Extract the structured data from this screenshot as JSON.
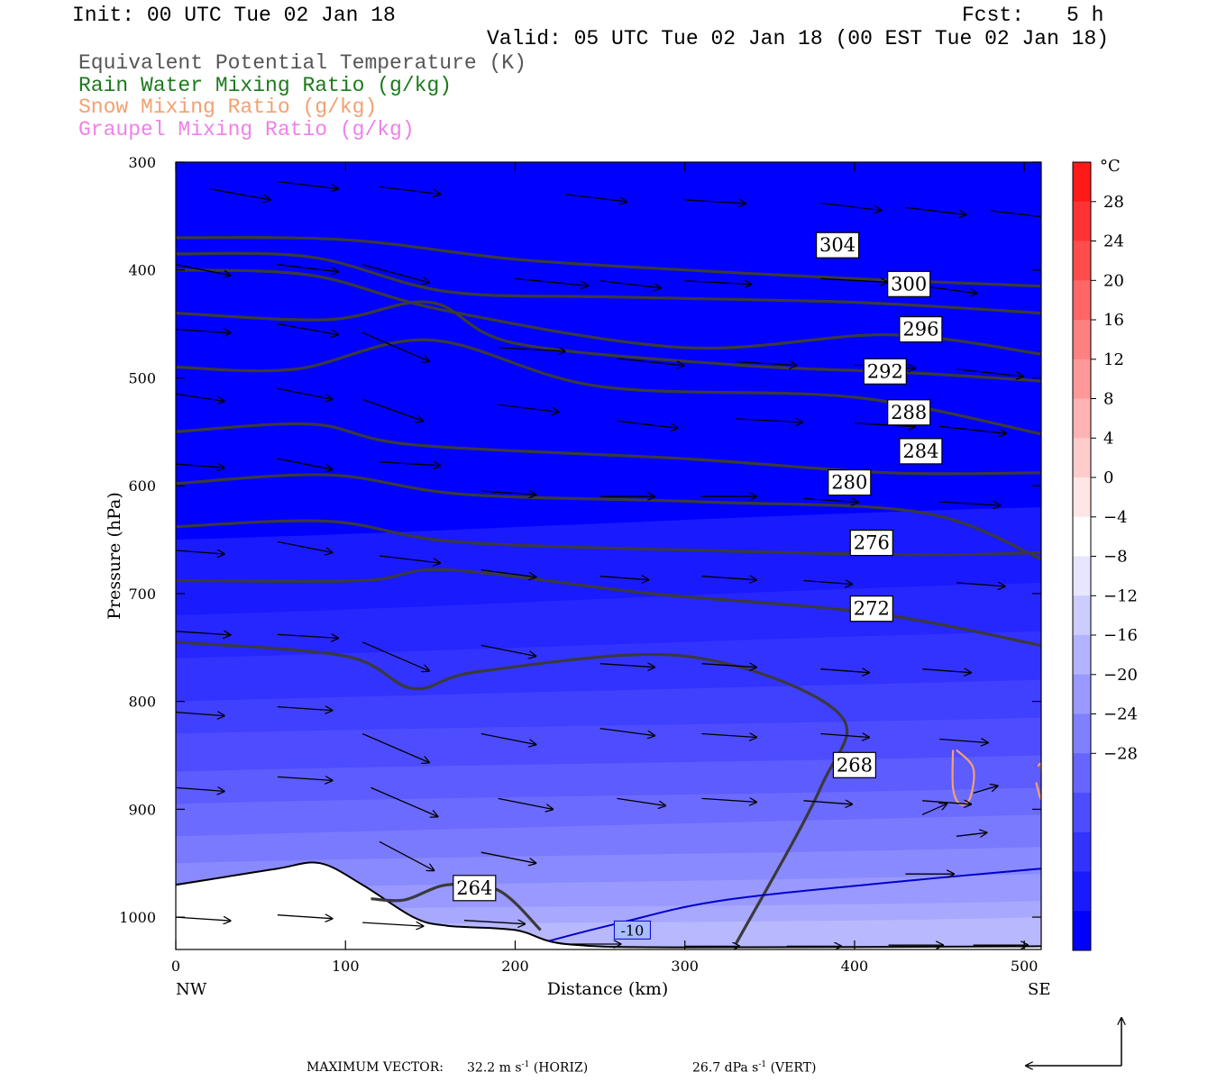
{
  "header": {
    "init": "Init: 00 UTC Tue 02 Jan 18",
    "fcst_label": "Fcst:",
    "fcst_value": "5 h",
    "valid": "Valid: 05 UTC Tue 02 Jan 18 (00 EST Tue 02 Jan 18)",
    "fields": [
      {
        "text": "Equivalent Potential Temperature (K)",
        "color": "#555555"
      },
      {
        "text": "Rain Water Mixing Ratio (g/kg)",
        "color": "#1a7a1a"
      },
      {
        "text": "Snow Mixing Ratio (g/kg)",
        "color": "#f4a070"
      },
      {
        "text": "Graupel Mixing Ratio (g/kg)",
        "color": "#f080e8"
      }
    ]
  },
  "chart_data": {
    "type": "cross-section",
    "xlabel": "Distance (km)",
    "ylabel": "Pressure (hPa)",
    "xlim": [
      0,
      510
    ],
    "ylim": [
      1030,
      300
    ],
    "x_ticks": [
      0,
      100,
      200,
      300,
      400,
      500
    ],
    "y_ticks": [
      300,
      400,
      500,
      600,
      700,
      800,
      900,
      1000
    ],
    "x_end_labels": {
      "left": "NW",
      "right": "SE"
    },
    "colorbar": {
      "unit": "°C",
      "ticks": [
        28,
        24,
        20,
        16,
        12,
        8,
        4,
        0,
        -4,
        -8,
        -12,
        -16,
        -20,
        -24,
        -28
      ],
      "colors_top_to_bottom": [
        "#ff1a1a",
        "#ff3333",
        "#ff4d4d",
        "#ff6666",
        "#ff8080",
        "#ff9999",
        "#ffb3b3",
        "#ffcccc",
        "#ffe6e6",
        "#ffffff",
        "#e6e6ff",
        "#ccccff",
        "#b3b3ff",
        "#9999ff",
        "#8080ff",
        "#6666ff",
        "#4d4dff",
        "#3333ff",
        "#1a1aff",
        "#0000ff"
      ]
    },
    "theta_e_contours": [
      {
        "level": 304,
        "points": [
          [
            0,
            370
          ],
          [
            100,
            372
          ],
          [
            200,
            390
          ],
          [
            300,
            400
          ],
          [
            400,
            408
          ],
          [
            510,
            415
          ]
        ],
        "label": {
          "text": "304",
          "x": 390,
          "y": 377
        }
      },
      {
        "level": 300,
        "points": [
          [
            0,
            385
          ],
          [
            80,
            388
          ],
          [
            160,
            420
          ],
          [
            260,
            425
          ],
          [
            400,
            430
          ],
          [
            510,
            440
          ]
        ],
        "label": {
          "text": "300",
          "x": 432,
          "y": 413
        }
      },
      {
        "level": 296,
        "points": [
          [
            0,
            400
          ],
          [
            80,
            405
          ],
          [
            160,
            438
          ],
          [
            300,
            472
          ],
          [
            420,
            460
          ],
          [
            510,
            478
          ]
        ],
        "label": {
          "text": "296",
          "x": 439,
          "y": 455
        }
      },
      {
        "level": 292,
        "points": [
          [
            0,
            440
          ],
          [
            90,
            446
          ],
          [
            150,
            430
          ],
          [
            200,
            468
          ],
          [
            330,
            488
          ],
          [
            430,
            495
          ],
          [
            510,
            503
          ]
        ],
        "label": {
          "text": "292",
          "x": 418,
          "y": 494
        }
      },
      {
        "level": 288,
        "points": [
          [
            0,
            490
          ],
          [
            70,
            492
          ],
          [
            150,
            465
          ],
          [
            250,
            508
          ],
          [
            400,
            518
          ],
          [
            510,
            552
          ]
        ],
        "label": {
          "text": "288",
          "x": 432,
          "y": 532
        }
      },
      {
        "level": 284,
        "points": [
          [
            0,
            550
          ],
          [
            80,
            543
          ],
          [
            140,
            562
          ],
          [
            300,
            575
          ],
          [
            420,
            588
          ],
          [
            510,
            588
          ]
        ],
        "label": {
          "text": "284",
          "x": 439,
          "y": 568
        }
      },
      {
        "level": 280,
        "points": [
          [
            0,
            598
          ],
          [
            90,
            590
          ],
          [
            170,
            608
          ],
          [
            310,
            615
          ],
          [
            440,
            625
          ],
          [
            510,
            668
          ]
        ],
        "label": {
          "text": "280",
          "x": 397,
          "y": 597
        }
      },
      {
        "level": 276,
        "points": [
          [
            0,
            638
          ],
          [
            90,
            633
          ],
          [
            165,
            652
          ],
          [
            310,
            660
          ],
          [
            440,
            664
          ],
          [
            510,
            662
          ]
        ],
        "label": {
          "text": "276",
          "x": 410,
          "y": 653
        }
      },
      {
        "level": 272,
        "points": [
          [
            0,
            688
          ],
          [
            110,
            688
          ],
          [
            160,
            678
          ],
          [
            280,
            700
          ],
          [
            410,
            718
          ],
          [
            510,
            748
          ]
        ],
        "label": {
          "text": "272",
          "x": 410,
          "y": 714
        }
      },
      {
        "level": 268,
        "points": [
          [
            0,
            745
          ],
          [
            100,
            758
          ],
          [
            140,
            788
          ],
          [
            180,
            772
          ],
          [
            300,
            758
          ],
          [
            390,
            810
          ],
          [
            380,
            880
          ],
          [
            330,
            1025
          ]
        ],
        "label": {
          "text": "268",
          "x": 400,
          "y": 859
        }
      },
      {
        "level": 264,
        "points": [
          [
            115,
            983
          ],
          [
            135,
            984
          ],
          [
            160,
            970
          ],
          [
            190,
            975
          ],
          [
            215,
            1012
          ]
        ],
        "label": {
          "text": "264",
          "x": 176,
          "y": 973
        }
      }
    ],
    "temperature_contours": [
      {
        "level": -10,
        "points": [
          [
            220,
            1022
          ],
          [
            260,
            1006
          ],
          [
            320,
            985
          ],
          [
            420,
            968
          ],
          [
            510,
            955
          ]
        ],
        "label": {
          "text": "-10",
          "x": 269,
          "y": 1012
        }
      }
    ],
    "snow_contours": [
      {
        "points": [
          [
            460,
            845
          ],
          [
            470,
            862
          ],
          [
            468,
            890
          ],
          [
            462,
            895
          ],
          [
            458,
            880
          ],
          [
            458,
            845
          ]
        ]
      },
      {
        "points": [
          [
            508,
            860
          ],
          [
            510,
            860
          ],
          [
            510,
            890
          ],
          [
            507,
            875
          ]
        ]
      }
    ],
    "terrain": [
      [
        0,
        970
      ],
      [
        20,
        965
      ],
      [
        60,
        955
      ],
      [
        85,
        950
      ],
      [
        110,
        970
      ],
      [
        140,
        1000
      ],
      [
        160,
        1008
      ],
      [
        200,
        1012
      ],
      [
        230,
        1025
      ],
      [
        300,
        1028
      ],
      [
        510,
        1027
      ]
    ],
    "wind_vectors_note": "arrows show cross-section wind",
    "wind_vectors": [
      [
        20,
        325,
        50,
        3
      ],
      [
        60,
        318,
        50,
        2
      ],
      [
        120,
        323,
        50,
        2
      ],
      [
        230,
        330,
        50,
        2
      ],
      [
        300,
        335,
        50,
        1
      ],
      [
        380,
        338,
        50,
        2
      ],
      [
        430,
        342,
        50,
        2
      ],
      [
        480,
        345,
        50,
        2
      ],
      [
        0,
        395,
        45,
        3
      ],
      [
        60,
        395,
        50,
        2
      ],
      [
        110,
        395,
        55,
        5
      ],
      [
        200,
        408,
        60,
        2
      ],
      [
        250,
        410,
        50,
        2
      ],
      [
        300,
        410,
        55,
        1
      ],
      [
        380,
        408,
        55,
        1
      ],
      [
        440,
        415,
        45,
        2
      ],
      [
        0,
        455,
        45,
        1
      ],
      [
        60,
        450,
        50,
        3
      ],
      [
        110,
        458,
        55,
        8
      ],
      [
        190,
        472,
        55,
        1
      ],
      [
        260,
        482,
        55,
        2
      ],
      [
        330,
        485,
        50,
        1
      ],
      [
        400,
        488,
        50,
        1
      ],
      [
        460,
        492,
        55,
        2
      ],
      [
        0,
        515,
        40,
        2
      ],
      [
        60,
        510,
        45,
        3
      ],
      [
        110,
        520,
        50,
        6
      ],
      [
        190,
        525,
        50,
        2
      ],
      [
        260,
        540,
        50,
        2
      ],
      [
        330,
        538,
        55,
        1
      ],
      [
        400,
        542,
        50,
        1
      ],
      [
        450,
        545,
        55,
        2
      ],
      [
        0,
        580,
        40,
        1
      ],
      [
        60,
        575,
        45,
        3
      ],
      [
        120,
        578,
        50,
        1
      ],
      [
        180,
        605,
        45,
        1
      ],
      [
        250,
        610,
        45,
        0
      ],
      [
        310,
        610,
        45,
        0
      ],
      [
        370,
        612,
        45,
        1
      ],
      [
        450,
        615,
        50,
        1
      ],
      [
        0,
        660,
        40,
        1
      ],
      [
        60,
        652,
        45,
        3
      ],
      [
        120,
        665,
        50,
        2
      ],
      [
        180,
        678,
        45,
        2
      ],
      [
        250,
        684,
        40,
        1
      ],
      [
        310,
        684,
        45,
        1
      ],
      [
        370,
        688,
        40,
        1
      ],
      [
        460,
        690,
        40,
        1
      ],
      [
        0,
        735,
        45,
        1
      ],
      [
        60,
        738,
        50,
        1
      ],
      [
        110,
        745,
        55,
        8
      ],
      [
        180,
        748,
        45,
        3
      ],
      [
        250,
        765,
        45,
        1
      ],
      [
        310,
        765,
        45,
        1
      ],
      [
        380,
        770,
        40,
        1
      ],
      [
        440,
        770,
        40,
        1
      ],
      [
        0,
        810,
        40,
        1
      ],
      [
        60,
        805,
        45,
        1
      ],
      [
        110,
        830,
        55,
        8
      ],
      [
        180,
        830,
        45,
        3
      ],
      [
        250,
        825,
        45,
        2
      ],
      [
        310,
        830,
        45,
        1
      ],
      [
        380,
        830,
        40,
        1
      ],
      [
        450,
        835,
        40,
        1
      ],
      [
        0,
        880,
        40,
        1
      ],
      [
        60,
        870,
        45,
        1
      ],
      [
        115,
        880,
        55,
        8
      ],
      [
        190,
        890,
        45,
        3
      ],
      [
        260,
        890,
        40,
        2
      ],
      [
        310,
        890,
        45,
        1
      ],
      [
        370,
        892,
        40,
        1
      ],
      [
        440,
        892,
        40,
        1
      ],
      [
        0,
        1000,
        45,
        1
      ],
      [
        60,
        998,
        45,
        1
      ],
      [
        110,
        1005,
        50,
        1
      ],
      [
        170,
        1003,
        50,
        1
      ],
      [
        230,
        1025,
        45,
        0
      ],
      [
        300,
        1027,
        45,
        0
      ],
      [
        360,
        1027,
        45,
        0
      ],
      [
        420,
        1026,
        45,
        0
      ],
      [
        470,
        1026,
        45,
        0
      ],
      [
        430,
        960,
        40,
        0
      ],
      [
        440,
        905,
        20,
        -3
      ],
      [
        470,
        885,
        20,
        -2
      ],
      [
        460,
        925,
        25,
        -1
      ],
      [
        120,
        930,
        45,
        8
      ],
      [
        180,
        940,
        45,
        3
      ]
    ],
    "max_vector": {
      "label": "MAXIMUM VECTOR:",
      "horiz_value": "32.2 m s",
      "horiz_exp": "-1",
      "horiz_tag": "(HORIZ)",
      "vert_value": "26.7 dPa s",
      "vert_exp": "-1",
      "vert_tag": "(VERT)"
    }
  }
}
